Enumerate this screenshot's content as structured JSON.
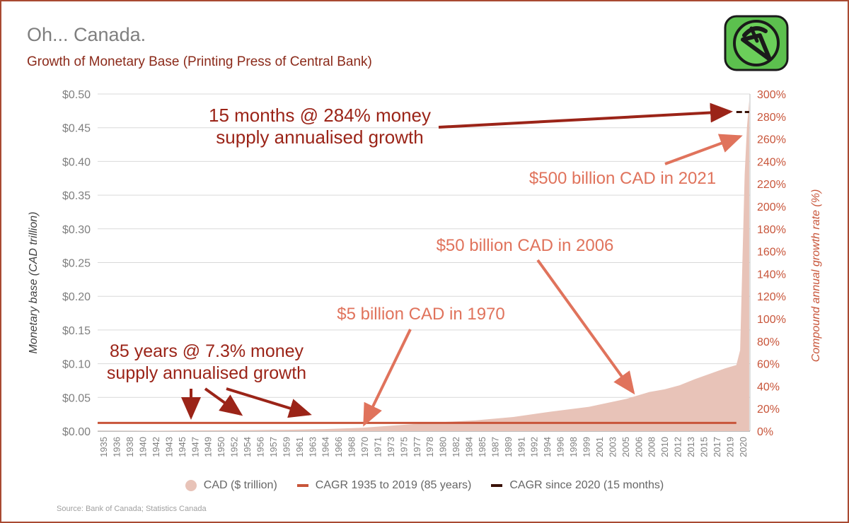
{
  "header": {
    "title": "Oh... Canada.",
    "subtitle": "Growth of Monetary Base (Printing Press of Central Bank)"
  },
  "source": "Source: Bank of Canada; Statistics Canada",
  "logo": {
    "icon": "broken-pen-logo-icon",
    "bg_color": "#5cc04e"
  },
  "colors": {
    "area": "#e8c3b8",
    "cagr_long": "#c8553a",
    "cagr_short": "#3a1208",
    "annotation_dark": "#9b2418",
    "annotation_light": "#e0735c",
    "axis_text": "#7f7f7f",
    "right_axis_text": "#c8553a"
  },
  "chart_data": {
    "type": "area",
    "title": "Growth of Monetary Base (Printing Press of Central Bank)",
    "ylabel": "Monetary base (CAD trillion)",
    "y2label": "Compound annual growth rate (%)",
    "ylim": [
      0,
      0.5
    ],
    "y2lim": [
      0,
      300
    ],
    "yticks": [
      "$0.00",
      "$0.05",
      "$0.10",
      "$0.15",
      "$0.20",
      "$0.25",
      "$0.30",
      "$0.35",
      "$0.40",
      "$0.45",
      "$0.50"
    ],
    "y2ticks": [
      "0%",
      "20%",
      "40%",
      "60%",
      "80%",
      "100%",
      "120%",
      "140%",
      "160%",
      "180%",
      "200%",
      "220%",
      "240%",
      "260%",
      "280%",
      "300%"
    ],
    "xticks": [
      "1935",
      "1936",
      "1938",
      "1940",
      "1942",
      "1943",
      "1945",
      "1947",
      "1949",
      "1950",
      "1952",
      "1954",
      "1956",
      "1957",
      "1959",
      "1961",
      "1963",
      "1964",
      "1966",
      "1968",
      "1970",
      "1971",
      "1973",
      "1975",
      "1977",
      "1978",
      "1980",
      "1982",
      "1984",
      "1985",
      "1987",
      "1989",
      "1991",
      "1992",
      "1994",
      "1996",
      "1998",
      "1999",
      "2001",
      "2003",
      "2005",
      "2006",
      "2008",
      "2010",
      "2012",
      "2013",
      "2015",
      "2017",
      "2019",
      "2020"
    ],
    "grid": true,
    "legend_position": "bottom",
    "series": [
      {
        "name": "CAD ($ trillion)",
        "kind": "area",
        "axis": "left",
        "x": [
          1935,
          1940,
          1945,
          1950,
          1955,
          1960,
          1965,
          1970,
          1975,
          1980,
          1985,
          1990,
          1995,
          2000,
          2005,
          2008,
          2010,
          2012,
          2014,
          2016,
          2018,
          2019.5,
          2020.0,
          2020.3,
          2020.6,
          2020.9,
          2021.2
        ],
        "values": [
          0.0002,
          0.0004,
          0.0008,
          0.0012,
          0.0015,
          0.002,
          0.003,
          0.005,
          0.009,
          0.013,
          0.016,
          0.021,
          0.029,
          0.036,
          0.048,
          0.058,
          0.062,
          0.068,
          0.077,
          0.085,
          0.093,
          0.098,
          0.12,
          0.25,
          0.38,
          0.45,
          0.49
        ]
      },
      {
        "name": "CAGR 1935 to 2019 (85 years)",
        "kind": "line",
        "axis": "right",
        "x": [
          1935,
          2019.5
        ],
        "values": [
          7.3,
          7.3
        ]
      },
      {
        "name": "CAGR since 2020 (15 months)",
        "kind": "line",
        "axis": "right",
        "x": [
          2019.5,
          2021.2
        ],
        "values": [
          284,
          284
        ]
      }
    ],
    "annotations": [
      {
        "text_lines": [
          "15 months @ 284% money",
          "supply annualised growth"
        ],
        "style": "dark"
      },
      {
        "text_lines": [
          "$500 billion CAD in 2021"
        ],
        "style": "light"
      },
      {
        "text_lines": [
          "$50 billion CAD in 2006"
        ],
        "style": "light"
      },
      {
        "text_lines": [
          "$5 billion CAD in 1970"
        ],
        "style": "light"
      },
      {
        "text_lines": [
          "85 years @ 7.3% money",
          "supply annualised growth"
        ],
        "style": "dark"
      }
    ]
  }
}
